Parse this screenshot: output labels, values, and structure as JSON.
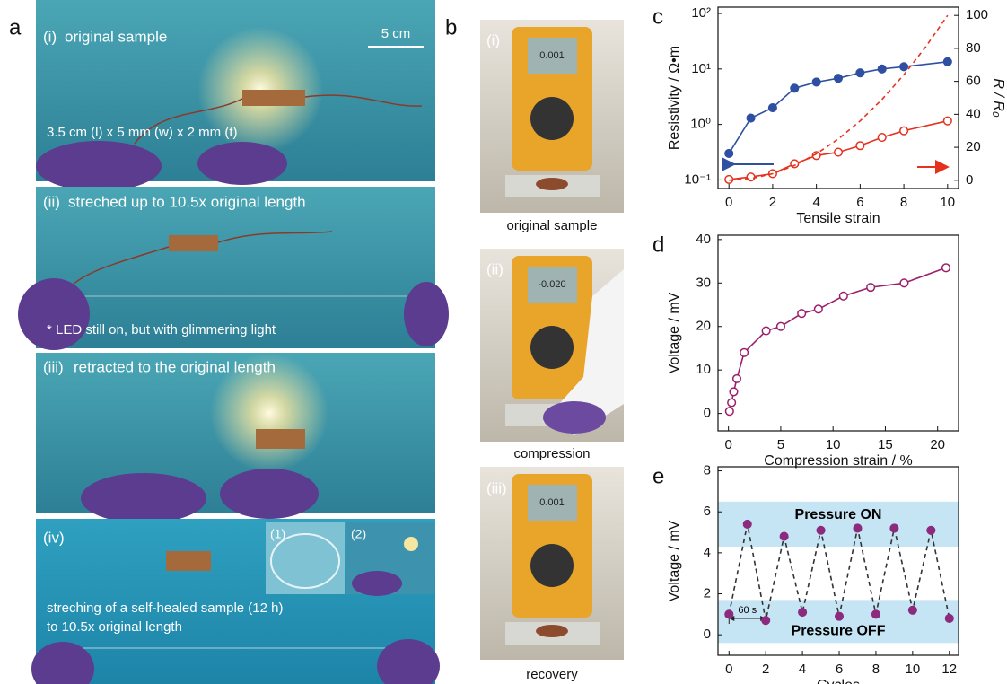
{
  "figure": {
    "a": {
      "letter": "a",
      "panels": [
        {
          "label": "(i)",
          "text": "original sample",
          "scale": "5 cm",
          "note": "3.5 cm (l) x 5 mm (w) x 2 mm (t)"
        },
        {
          "label": "(ii)",
          "text": "streched up to 10.5x original length",
          "note": "* LED still on, but with glimmering light"
        },
        {
          "label": "(iii)",
          "text": "retracted to the original length"
        },
        {
          "label": "(iv)",
          "text": "streching of a self-healed sample (12 h)",
          "note": "to 10.5x original length",
          "insets": [
            "(1)",
            "(2)"
          ]
        }
      ]
    },
    "b": {
      "letter": "b",
      "panels": [
        {
          "label": "(i)",
          "caption": "original sample",
          "display": "0.001"
        },
        {
          "label": "(ii)",
          "caption": "compression",
          "display": "-0.020"
        },
        {
          "label": "(iii)",
          "caption": "recovery",
          "display": "0.001"
        }
      ]
    }
  },
  "chart_data": [
    {
      "type": "line",
      "panel": "c",
      "x_label": "Tensile strain",
      "y_label": "Resistivity / Ω•m",
      "y2_label": "R / R₀",
      "x": [
        0,
        1,
        2,
        3,
        4,
        5,
        6,
        7,
        8,
        10
      ],
      "log_y": true,
      "series": [
        {
          "color": "#2f4fa2",
          "marker": "filled",
          "values": [
            0.3,
            1.3,
            2,
            4.5,
            5.8,
            6.8,
            8.5,
            10,
            11,
            13.5
          ]
        },
        {
          "color": "#e5321f",
          "marker": "open",
          "axis": "y2",
          "values": [
            0.5,
            2,
            4,
            10,
            15,
            17,
            21,
            26,
            30,
            36
          ]
        },
        {
          "color": "#e5321f",
          "dash": true,
          "axis": "y2",
          "x": [
            0,
            1,
            2,
            3,
            4,
            5,
            6,
            7,
            8,
            9,
            10
          ],
          "values": [
            0,
            1,
            4,
            9,
            16,
            25,
            36,
            49,
            64,
            81,
            100
          ]
        }
      ],
      "xlim": [
        -0.5,
        10.5
      ],
      "xticks": [
        0,
        2,
        4,
        6,
        8,
        10
      ],
      "ylim": [
        0.07,
        130
      ],
      "yticks": [
        {
          "value": 0.1,
          "label": "10⁻¹"
        },
        {
          "value": 1,
          "label": "10⁰"
        },
        {
          "value": 10,
          "label": "10¹"
        },
        {
          "value": 100,
          "label": "10²"
        }
      ],
      "y2lim": [
        -5,
        105
      ],
      "y2ticks": [
        0,
        20,
        40,
        60,
        80,
        100
      ]
    },
    {
      "type": "line",
      "panel": "d",
      "x_label": "Compression strain / %",
      "y_label": "Voltage / mV",
      "x": [
        0.1,
        0.3,
        0.5,
        0.8,
        1.5,
        3.6,
        5,
        7,
        8.6,
        11,
        13.6,
        16.8,
        20.8
      ],
      "series": [
        {
          "color": "#9c1f6b",
          "marker": "open",
          "values": [
            0.5,
            2.5,
            5,
            8,
            14,
            19,
            20,
            23,
            24,
            27,
            29,
            30,
            33.5
          ]
        }
      ],
      "xlim": [
        -1,
        22
      ],
      "xticks": [
        0,
        5,
        10,
        15,
        20
      ],
      "ylim": [
        -4,
        41
      ],
      "yticks": [
        0,
        10,
        20,
        30,
        40
      ]
    },
    {
      "type": "line",
      "panel": "e",
      "x_label": "Cycles",
      "y_label": "Voltage / mV",
      "x": [
        0,
        1,
        2,
        3,
        4,
        5,
        6,
        7,
        8,
        9,
        10,
        11,
        12
      ],
      "series": [
        {
          "color": "#8c2b7d",
          "line_color": "#333333",
          "dash": true,
          "marker": "filled",
          "values": [
            1,
            5.4,
            0.7,
            4.8,
            1.1,
            5.1,
            0.9,
            5.2,
            1,
            5.2,
            1.2,
            5.1,
            0.8
          ]
        }
      ],
      "bands": [
        {
          "y": [
            4.3,
            6.5
          ],
          "label": "Pressure ON"
        },
        {
          "y": [
            -0.4,
            1.7
          ],
          "label": "Pressure OFF"
        }
      ],
      "band_color": "#c6e5f4",
      "span": {
        "x": [
          0,
          2
        ],
        "label": "60 s"
      },
      "xlim": [
        -0.6,
        12.5
      ],
      "xticks": [
        0,
        2,
        4,
        6,
        8,
        10,
        12
      ],
      "ylim": [
        -1,
        8.2
      ],
      "yticks": [
        0,
        2,
        4,
        6,
        8
      ]
    }
  ]
}
